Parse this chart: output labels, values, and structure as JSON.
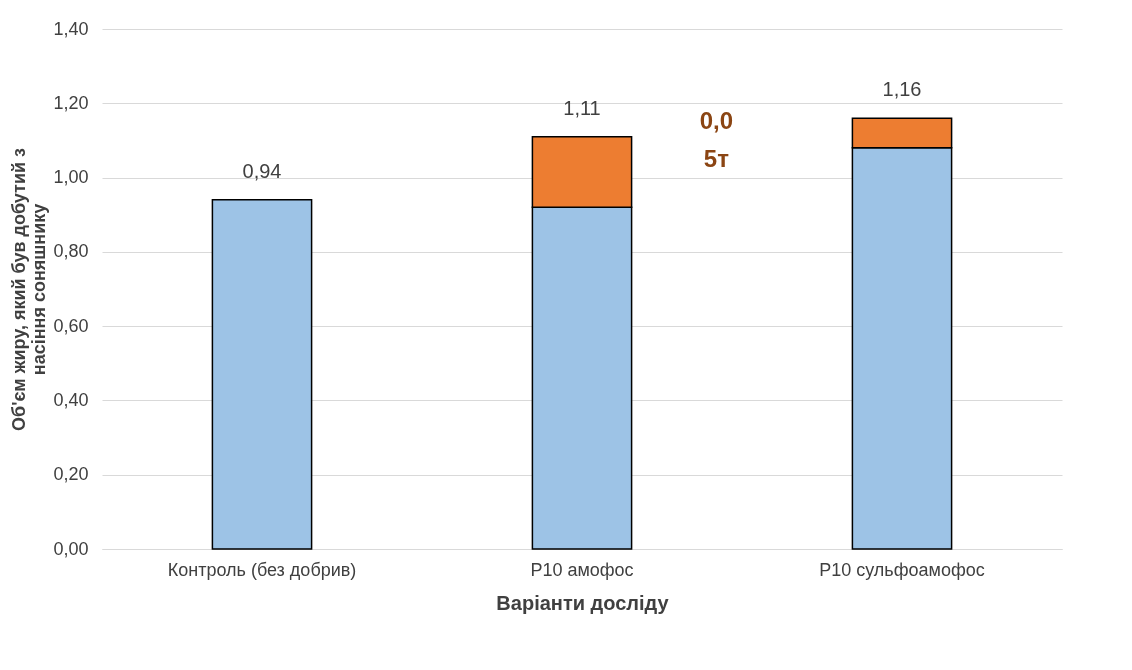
{
  "chart_data": {
    "type": "bar",
    "stacked": true,
    "xlabel": "Варіанти досліду",
    "ylabel": "Об'єм жиру, який був добутий з насіння соняшнику",
    "categories": [
      "Контроль (без добрив)",
      "Р10 амофос",
      "Р10 сульфоамофос"
    ],
    "series": [
      {
        "color": "#9dc3e6",
        "values": [
          0.94,
          0.92,
          1.08
        ]
      },
      {
        "color": "#ed7d31",
        "values": [
          null,
          0.19,
          0.08
        ]
      }
    ],
    "totals": [
      "0,94",
      "1,11",
      "1,16"
    ],
    "ylim": [
      0,
      1.4
    ],
    "yticks": [
      {
        "value": 0,
        "label": "0,00"
      },
      {
        "value": 0.2,
        "label": "0,20"
      },
      {
        "value": 0.4,
        "label": "0,40"
      },
      {
        "value": 0.6,
        "label": "0,60"
      },
      {
        "value": 0.8,
        "label": "0,80"
      },
      {
        "value": 1.0,
        "label": "1,00"
      },
      {
        "value": 1.2,
        "label": "1,20"
      },
      {
        "value": 1.4,
        "label": "1,40"
      }
    ],
    "grid": "y",
    "annotations": [
      "0,0\n5т"
    ]
  }
}
